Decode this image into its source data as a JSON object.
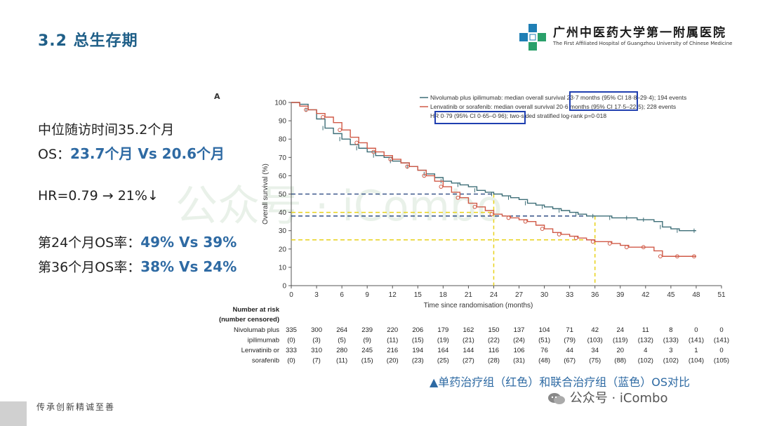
{
  "header": {
    "title": "3.2 总生存期"
  },
  "logo": {
    "name_cn": "广州中医药大学第一附属医院",
    "name_en": "The First Affiliated Hospital of Guangzhou University of Chinese Medicine"
  },
  "stats": {
    "followup": "中位随访时间35.2个月",
    "os_label": "OS：",
    "os_value": "23.7个月 Vs 20.6个月",
    "hr": "HR=0.79 → 21%↓",
    "m24_label": "第24个月OS率：",
    "m24_value": "49% Vs 39%",
    "m36_label": "第36个月OS率：",
    "m36_value": "38% Vs 24%"
  },
  "panel_label": "A",
  "caption": "▲单药治疗组（红色）和联合治疗组（蓝色）OS对比",
  "footer": "传承创新精诚至善",
  "watermark": "公众号 · iCombo",
  "colors": {
    "accent": "#2e6aa3",
    "blue_series": "#3d6e77",
    "red_series": "#d05a47",
    "box": "#1f3fb0",
    "guide_yellow": "#e8d21a",
    "guide_navy": "#1f3f7a"
  },
  "chart_data": {
    "type": "line",
    "subtype": "kaplan-meier",
    "xlabel": "Time since randomisation (months)",
    "ylabel": "Overall survival (%)",
    "xlim": [
      0,
      51
    ],
    "ylim": [
      0,
      100
    ],
    "xticks": [
      0,
      3,
      6,
      9,
      12,
      15,
      18,
      21,
      24,
      27,
      30,
      33,
      36,
      39,
      42,
      45,
      48,
      51
    ],
    "yticks": [
      0,
      10,
      20,
      30,
      40,
      50,
      60,
      70,
      80,
      90,
      100
    ],
    "grid": false,
    "legend": {
      "position": "top-right",
      "entries": [
        "Nivolumab plus ipilimumab: median overall survival 23·7 months (95% CI 18·8–29·4); 194 events",
        "Lenvatinib or sorafenib: median overall survival 20·6 months (95% CI 17·5–22·5); 228 events"
      ],
      "annotation": "HR 0·79 (95% CI 0·65–0·96); two-sided stratified log-rank p=0·018"
    },
    "series": [
      {
        "name": "Nivolumab plus ipilimumab",
        "color": "#3d6e77",
        "x": [
          0,
          1,
          2,
          3,
          4,
          5,
          6,
          7,
          8,
          9,
          10,
          11,
          12,
          13,
          14,
          15,
          16,
          17,
          18,
          19,
          20,
          21,
          22,
          23,
          24,
          25,
          26,
          27,
          28,
          29,
          30,
          31,
          32,
          33,
          34,
          35,
          36,
          37,
          38,
          39,
          40,
          41,
          42,
          43,
          44,
          45,
          46,
          47,
          48
        ],
        "y": [
          100,
          99,
          96,
          91,
          86,
          83,
          80,
          77,
          75,
          73,
          71,
          70,
          68,
          67,
          65,
          63,
          61,
          59,
          57,
          56,
          55,
          54,
          52,
          51,
          50,
          49,
          48,
          47,
          45,
          44,
          43,
          42,
          41,
          40,
          39,
          38,
          38,
          38,
          37,
          37,
          37,
          36,
          36,
          35,
          32,
          31,
          30,
          30,
          30
        ]
      },
      {
        "name": "Lenvatinib or sorafenib",
        "color": "#d05a47",
        "x": [
          0,
          1,
          2,
          3,
          4,
          5,
          6,
          7,
          8,
          9,
          10,
          11,
          12,
          13,
          14,
          15,
          16,
          17,
          18,
          19,
          20,
          21,
          22,
          23,
          24,
          25,
          26,
          27,
          28,
          29,
          30,
          31,
          32,
          33,
          34,
          35,
          36,
          37,
          38,
          39,
          40,
          41,
          42,
          43,
          44,
          45,
          46,
          47,
          48
        ],
        "y": [
          100,
          98,
          96,
          94,
          92,
          89,
          85,
          81,
          78,
          75,
          73,
          71,
          69,
          67,
          65,
          63,
          60,
          57,
          54,
          51,
          48,
          45,
          43,
          41,
          39,
          38,
          37,
          36,
          35,
          33,
          31,
          29,
          28,
          27,
          26,
          25,
          24,
          24,
          23,
          22,
          21,
          21,
          21,
          19,
          16,
          16,
          16,
          16,
          16
        ]
      }
    ],
    "reference_lines": {
      "months": [
        24,
        36
      ],
      "blue_levels": [
        50,
        38
      ],
      "red_levels": [
        40,
        25
      ]
    },
    "risk_table": {
      "title": "Number at risk",
      "subtitle": "(number censored)",
      "rows": [
        {
          "label": "Nivolumab plus",
          "values": [
            "335",
            "300",
            "264",
            "239",
            "220",
            "206",
            "179",
            "162",
            "150",
            "137",
            "104",
            "71",
            "42",
            "24",
            "11",
            "8",
            "0",
            "0"
          ]
        },
        {
          "label": "ipilimumab",
          "values": [
            "(0)",
            "(3)",
            "(5)",
            "(9)",
            "(11)",
            "(15)",
            "(19)",
            "(21)",
            "(22)",
            "(24)",
            "(51)",
            "(79)",
            "(103)",
            "(119)",
            "(132)",
            "(133)",
            "(141)",
            "(141)"
          ]
        },
        {
          "label": "Lenvatinib or",
          "values": [
            "333",
            "310",
            "280",
            "245",
            "216",
            "194",
            "164",
            "144",
            "116",
            "106",
            "76",
            "44",
            "34",
            "20",
            "4",
            "3",
            "1",
            "0"
          ]
        },
        {
          "label": "sorafenib",
          "values": [
            "(0)",
            "(7)",
            "(11)",
            "(15)",
            "(20)",
            "(23)",
            "(25)",
            "(27)",
            "(28)",
            "(31)",
            "(48)",
            "(67)",
            "(75)",
            "(88)",
            "(102)",
            "(102)",
            "(104)",
            "(105)"
          ]
        }
      ]
    }
  }
}
